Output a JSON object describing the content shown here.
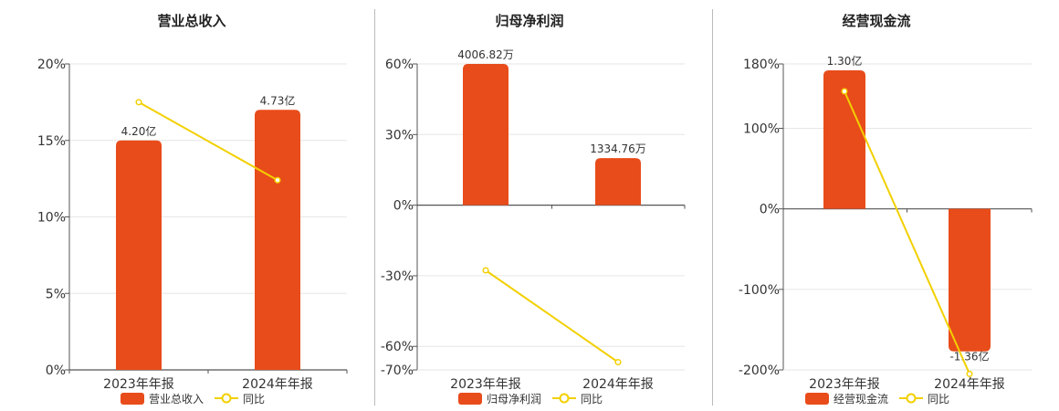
{
  "colors": {
    "bar": "#E84C1A",
    "line": "#F2D000",
    "grid": "#e6e6e6",
    "axis": "#555555"
  },
  "legend": {
    "line_label": "同比"
  },
  "chart_data": [
    {
      "type": "bar",
      "title": "营业总收入",
      "categories": [
        "2023年年报",
        "2024年年报"
      ],
      "y_ticks": [
        "0%",
        "5%",
        "10%",
        "15%",
        "20%"
      ],
      "ylim": [
        0,
        20
      ],
      "series": [
        {
          "name": "营业总收入",
          "kind": "bar",
          "values": [
            15,
            17
          ],
          "labels": [
            "4.20亿",
            "4.73亿"
          ]
        },
        {
          "name": "同比",
          "kind": "line",
          "values": [
            17.5,
            12.4
          ]
        }
      ]
    },
    {
      "type": "bar",
      "title": "归母净利润",
      "categories": [
        "2023年年报",
        "2024年年报"
      ],
      "y_ticks": [
        "-70%",
        "-60%",
        "-30%",
        "0%",
        "30%",
        "60%"
      ],
      "ylim": [
        -70,
        60
      ],
      "series": [
        {
          "name": "归母净利润",
          "kind": "bar",
          "values": [
            60,
            20
          ],
          "labels": [
            "4006.82万",
            "1334.76万"
          ]
        },
        {
          "name": "同比",
          "kind": "line",
          "values": [
            -27.7,
            -66.7
          ]
        }
      ]
    },
    {
      "type": "bar",
      "title": "经营现金流",
      "categories": [
        "2023年年报",
        "2024年年报"
      ],
      "y_ticks": [
        "-200%",
        "-100%",
        "0%",
        "100%",
        "180%"
      ],
      "ylim": [
        -200,
        180
      ],
      "series": [
        {
          "name": "经营现金流",
          "kind": "bar",
          "values": [
            172,
            -177
          ],
          "labels": [
            "1.30亿",
            "-1.36亿"
          ]
        },
        {
          "name": "同比",
          "kind": "line",
          "values": [
            146,
            -205
          ]
        }
      ]
    }
  ]
}
